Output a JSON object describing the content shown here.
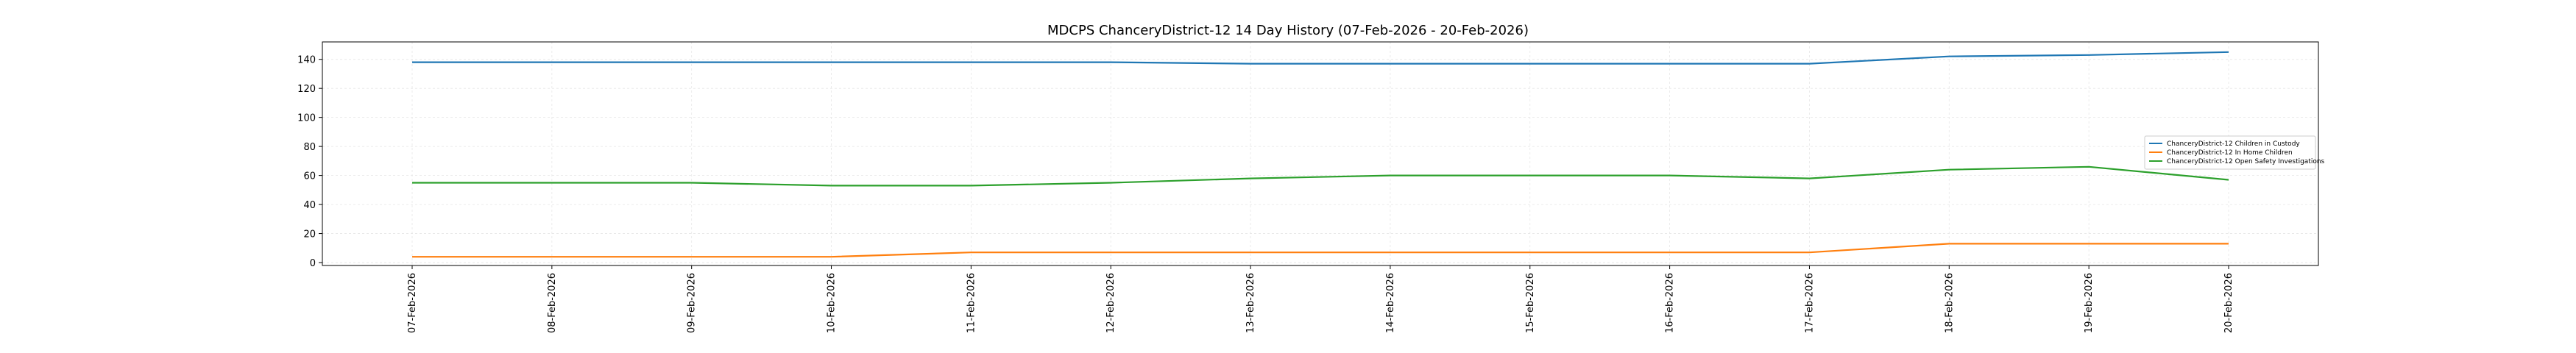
{
  "chart_data": {
    "type": "line",
    "title": "MDCPS ChanceryDistrict-12 14 Day History (07-Feb-2026 - 20-Feb-2026)",
    "xlabel": "",
    "ylabel": "",
    "x": [
      "07-Feb-2026",
      "08-Feb-2026",
      "09-Feb-2026",
      "10-Feb-2026",
      "11-Feb-2026",
      "12-Feb-2026",
      "13-Feb-2026",
      "14-Feb-2026",
      "15-Feb-2026",
      "16-Feb-2026",
      "17-Feb-2026",
      "18-Feb-2026",
      "19-Feb-2026",
      "20-Feb-2026"
    ],
    "ylim": [
      -2,
      152
    ],
    "yticks": [
      0,
      20,
      40,
      60,
      80,
      100,
      120,
      140
    ],
    "grid": true,
    "legend": "center-right",
    "series": [
      {
        "name": "ChanceryDistrict-12 Children in Custody",
        "color": "#1f77b4",
        "values": [
          138,
          138,
          138,
          138,
          138,
          138,
          137,
          137,
          137,
          137,
          137,
          142,
          143,
          145
        ]
      },
      {
        "name": "ChanceryDistrict-12 In Home Children",
        "color": "#ff7f0e",
        "values": [
          4,
          4,
          4,
          4,
          7,
          7,
          7,
          7,
          7,
          7,
          7,
          13,
          13,
          13
        ]
      },
      {
        "name": "ChanceryDistrict-12 Open Safety Investigations",
        "color": "#2ca02c",
        "values": [
          55,
          55,
          55,
          53,
          53,
          55,
          58,
          60,
          60,
          60,
          58,
          64,
          66,
          57
        ]
      }
    ]
  }
}
